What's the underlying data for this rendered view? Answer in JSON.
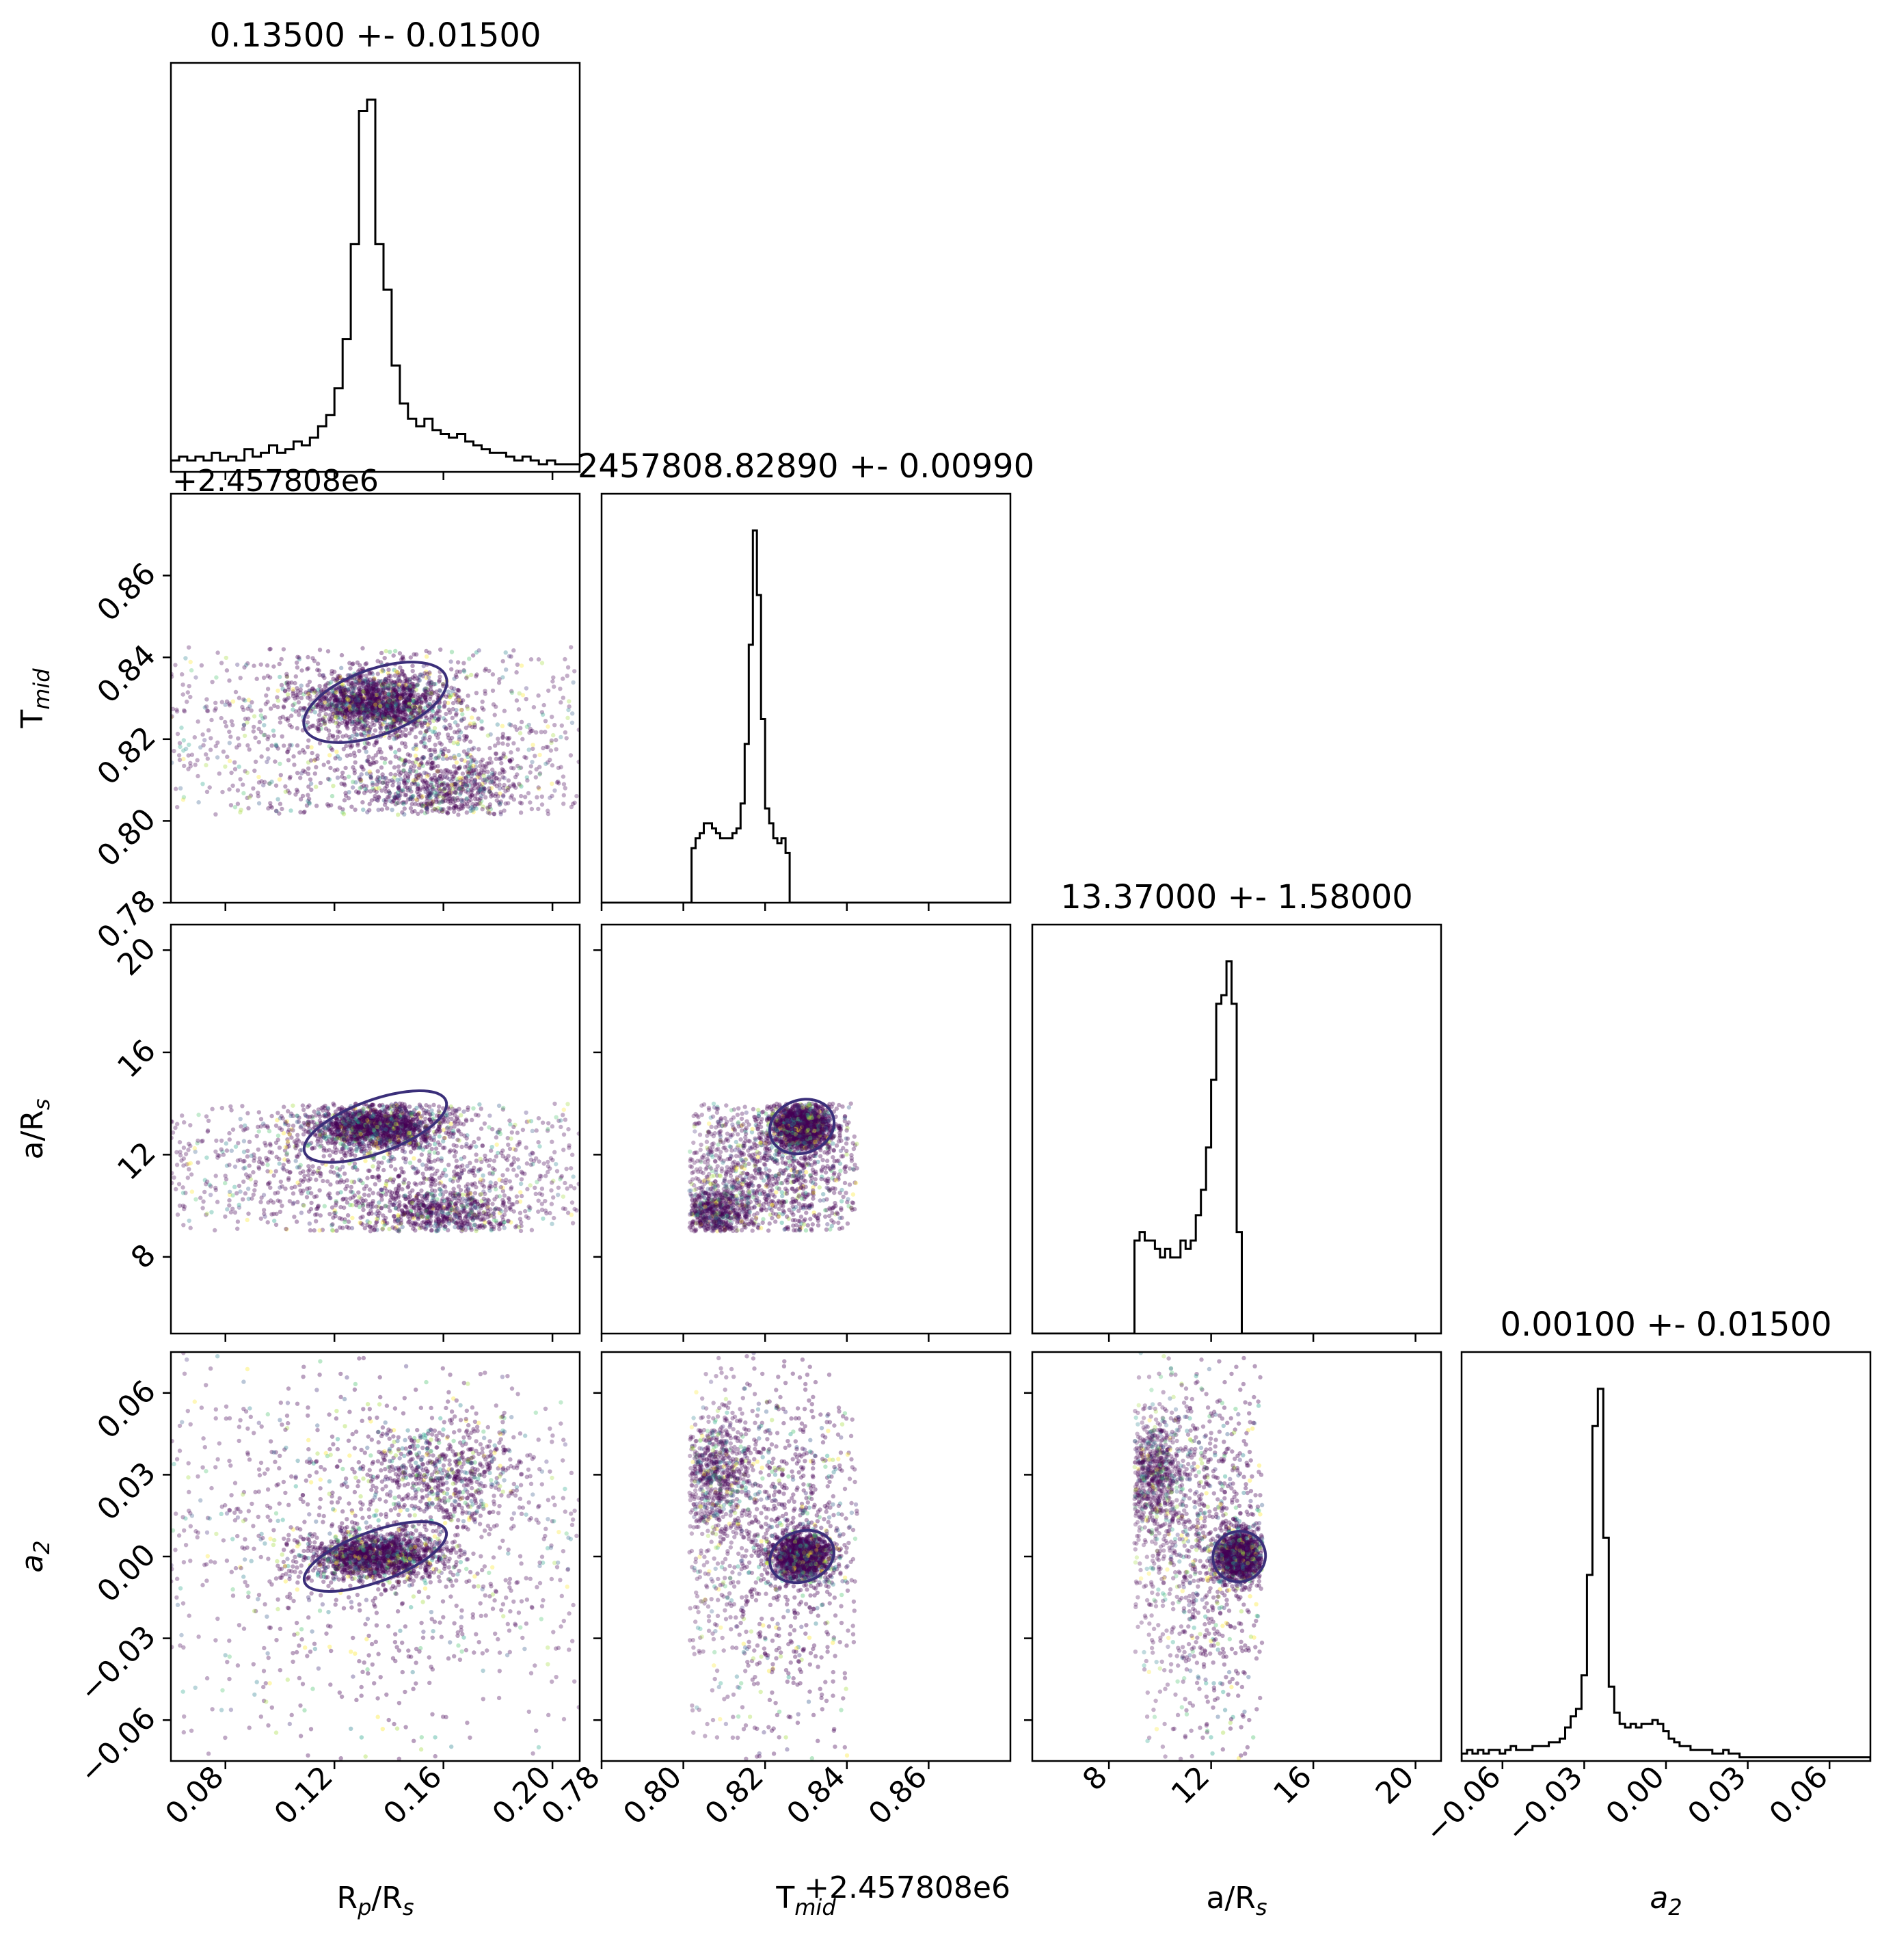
{
  "chart_data": {
    "type": "scatter",
    "variables": [
      "R_p/R_s",
      "T_mid",
      "a/R_s",
      "a_2"
    ],
    "axis_labels": [
      {
        "main": "R",
        "sub": "p",
        "rest": "/R",
        "sub2": "s"
      },
      {
        "main": "T",
        "sub": "mid",
        "rest": "",
        "sub2": ""
      },
      {
        "main": "a/R",
        "sub": "s",
        "rest": "",
        "sub2": ""
      },
      {
        "main": "a",
        "sub": "2",
        "rest": "",
        "sub2": "",
        "italic": true
      }
    ],
    "titles": [
      "0.13500 +- 0.01500",
      "2457808.82890 +- 0.00990",
      "13.37000 +- 1.58000",
      "0.00100 +- 0.01500"
    ],
    "offset_text": "+2.457808e6",
    "ranges": [
      [
        0.06,
        0.21
      ],
      [
        0.78,
        0.88
      ],
      [
        5,
        21
      ],
      [
        -0.075,
        0.075
      ]
    ],
    "ticks": [
      [
        0.08,
        0.12,
        0.16,
        0.2
      ],
      [
        0.78,
        0.8,
        0.82,
        0.84,
        0.86
      ],
      [
        8,
        12,
        16,
        20
      ],
      [
        -0.06,
        -0.03,
        0.0,
        0.03,
        0.06
      ]
    ],
    "tick_labels": [
      [
        "0.08",
        "0.12",
        "0.16",
        "0.20"
      ],
      [
        "0.78",
        "0.80",
        "0.82",
        "0.84",
        "0.86"
      ],
      [
        "8",
        "12",
        "16",
        "20"
      ],
      [
        "−0.06",
        "−0.03",
        "0.00",
        "0.03",
        "0.06"
      ]
    ],
    "sample_bounds": {
      "R_p/R_s": [
        0.06,
        0.21
      ],
      "T_mid": [
        0.8015,
        0.8425
      ],
      "a/R_s": [
        9.0,
        14.0
      ],
      "a_2": [
        -0.075,
        0.075
      ]
    },
    "modes": [
      {
        "weight": 0.45,
        "center": [
          0.135,
          0.829,
          13.1,
          0.0
        ],
        "sd": [
          0.012,
          0.0035,
          0.45,
          0.004
        ]
      },
      {
        "weight": 0.2,
        "center": [
          0.16,
          0.808,
          9.7,
          0.03
        ],
        "sd": [
          0.015,
          0.0045,
          0.5,
          0.01
        ]
      },
      {
        "weight": 0.35,
        "center": [
          0.135,
          0.82,
          11.5,
          0.008
        ],
        "sd": [
          0.045,
          0.014,
          1.6,
          0.035
        ]
      }
    ],
    "histograms": {
      "R_p/R_s": {
        "x_start": 0.06,
        "bin_width": 0.003,
        "counts": [
          3,
          4,
          3,
          4,
          3,
          5,
          3,
          4,
          3,
          6,
          4,
          5,
          7,
          5,
          6,
          8,
          7,
          9,
          12,
          15,
          22,
          35,
          60,
          95,
          98,
          60,
          48,
          28,
          18,
          14,
          12,
          14,
          11,
          10,
          9,
          10,
          8,
          7,
          6,
          5,
          5,
          4,
          3,
          4,
          3,
          2,
          3,
          2,
          2,
          2
        ]
      },
      "T_mid": {
        "x_start": 0.78,
        "bin_width": 0.001,
        "counts": [
          0,
          0,
          0,
          0,
          0,
          0,
          0,
          0,
          0,
          0,
          0,
          0,
          0,
          0,
          0,
          0,
          0,
          0,
          0,
          0,
          0,
          0,
          11,
          13,
          14,
          16,
          16,
          15,
          14,
          13,
          13,
          13,
          14,
          15,
          20,
          32,
          52,
          75,
          62,
          37,
          19,
          16,
          13,
          12,
          13,
          10,
          0,
          0,
          0,
          0,
          0,
          0,
          0,
          0,
          0,
          0,
          0,
          0,
          0,
          0,
          0,
          0,
          0,
          0,
          0,
          0,
          0,
          0,
          0,
          0,
          0,
          0,
          0,
          0,
          0,
          0,
          0,
          0,
          0,
          0,
          0,
          0,
          0,
          0,
          0,
          0,
          0,
          0,
          0,
          0,
          0,
          0,
          0,
          0,
          0,
          0,
          0,
          0,
          0,
          0
        ]
      },
      "a/R_s": {
        "x_start": 5.0,
        "bin_width": 0.2,
        "counts": [
          0,
          0,
          0,
          0,
          0,
          0,
          0,
          0,
          0,
          0,
          0,
          0,
          0,
          0,
          0,
          0,
          0,
          0,
          0,
          0,
          11,
          12,
          11,
          11,
          10,
          9,
          10,
          9,
          9,
          11,
          10,
          11,
          14,
          17,
          22,
          30,
          39,
          40,
          44,
          39,
          12,
          0,
          0,
          0,
          0,
          0,
          0,
          0,
          0,
          0,
          0,
          0,
          0,
          0,
          0,
          0,
          0,
          0,
          0,
          0,
          0,
          0,
          0,
          0,
          0,
          0,
          0,
          0,
          0,
          0,
          0,
          0,
          0,
          0,
          0,
          0,
          0,
          0,
          0,
          0
        ]
      },
      "a_2": {
        "x_start": -0.075,
        "bin_width": 0.002,
        "counts": [
          2,
          3,
          2,
          3,
          2,
          3,
          3,
          2,
          3,
          4,
          3,
          3,
          3,
          4,
          4,
          4,
          5,
          5,
          6,
          9,
          12,
          14,
          23,
          50,
          90,
          100,
          60,
          20,
          13,
          10,
          9,
          10,
          9,
          10,
          10,
          11,
          10,
          8,
          6,
          5,
          4,
          4,
          3,
          3,
          3,
          3,
          2,
          2,
          3,
          2,
          2,
          1,
          1,
          1,
          1,
          1,
          1,
          1,
          1,
          1,
          1,
          1,
          1,
          1,
          1,
          1,
          1,
          1,
          1,
          1,
          1,
          1,
          1,
          1,
          1
        ]
      }
    },
    "point_colors": [
      "#440154",
      "#46327e",
      "#365c8d",
      "#277f8e",
      "#1fa187",
      "#4ac16d",
      "#a0da39",
      "#fde725"
    ],
    "contour_color": "#3b2f7a",
    "hist_color": "#000000",
    "grid": false,
    "legend": "none"
  }
}
